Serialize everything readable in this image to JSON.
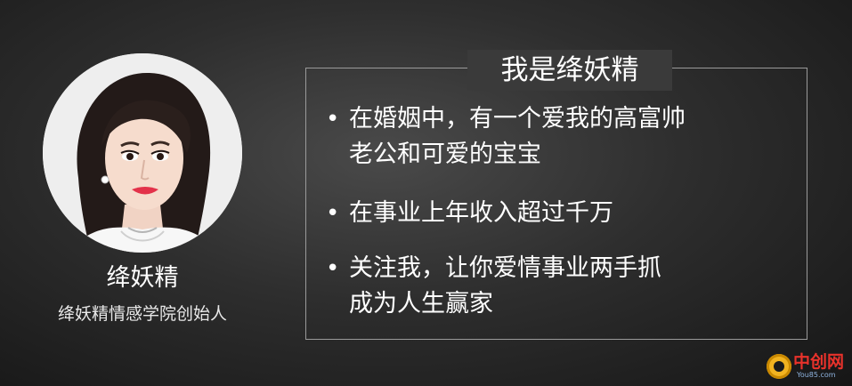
{
  "profile": {
    "name": "绛妖精",
    "subtitle": "绛妖精情感学院创始人"
  },
  "intro": {
    "title": "我是绛妖精",
    "bullets": [
      {
        "text": "在婚姻中，有一个爱我的高富帅\n老公和可爱的宝宝"
      },
      {
        "text": "在事业上年收入超过千万"
      },
      {
        "text": "关注我，让你爱情事业两手抓\n成为人生赢家"
      }
    ]
  },
  "watermark": {
    "brand": "中创网",
    "url": "You85.com"
  },
  "colors": {
    "background": "#2e2e2e",
    "text": "#ffffff",
    "box_border": "#9a9a9a",
    "watermark_red": "#e8322b",
    "watermark_gold": "#f2b320"
  }
}
